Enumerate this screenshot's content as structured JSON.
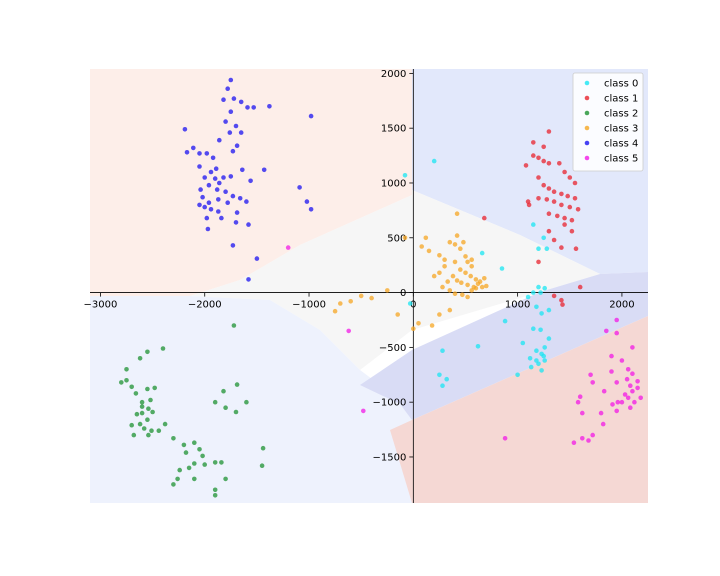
{
  "chart_data": {
    "type": "scatter",
    "title": "",
    "xlabel": "",
    "ylabel": "",
    "xlim": [
      -3100,
      2250
    ],
    "ylim": [
      -1920,
      2040
    ],
    "x_ticks": [
      -3000,
      -2000,
      -1000,
      0,
      1000,
      2000
    ],
    "y_ticks": [
      -1500,
      -1000,
      -500,
      0,
      500,
      1000,
      1500,
      2000
    ],
    "x_tick_labels": [
      "−3000",
      "−2000",
      "−1000",
      "0",
      "1000",
      "2000"
    ],
    "y_tick_labels": [
      "−1500",
      "−1000",
      "−500",
      "0",
      "500",
      "1000",
      "1500",
      "2000"
    ],
    "axes_through_origin": true,
    "grid": false,
    "legend_position": "top-right",
    "decision_regions": [
      {
        "class": "class 2 region (top-left)",
        "color": "#fdeee9"
      },
      {
        "class": "class 0 region (top-right)",
        "color": "#e2e8fb"
      },
      {
        "class": "class 3 region (center)",
        "color": "#f6f6f6"
      },
      {
        "class": "class 4 region (lower-left)",
        "color": "#eef2fd"
      },
      {
        "class": "class 1 region (band)",
        "color": "#d9dcf5"
      },
      {
        "class": "class 5 region (bottom-right)",
        "color": "#f5d8d4"
      }
    ],
    "series": [
      {
        "name": "class 0",
        "color": "#1ae5f2",
        "points": [
          [
            200,
            1200
          ],
          [
            -80,
            1070
          ],
          [
            1150,
            620
          ],
          [
            1250,
            500
          ],
          [
            1200,
            400
          ],
          [
            1280,
            400
          ],
          [
            660,
            360
          ],
          [
            850,
            220
          ],
          [
            1200,
            50
          ],
          [
            1150,
            0
          ],
          [
            1220,
            0
          ],
          [
            1260,
            40
          ],
          [
            1100,
            -40
          ],
          [
            1180,
            -130
          ],
          [
            1300,
            -160
          ],
          [
            1230,
            -190
          ],
          [
            880,
            -260
          ],
          [
            1150,
            -330
          ],
          [
            1220,
            -340
          ],
          [
            1300,
            -420
          ],
          [
            1050,
            -460
          ],
          [
            1260,
            -500
          ],
          [
            1180,
            -530
          ],
          [
            1230,
            -560
          ],
          [
            1120,
            -600
          ],
          [
            1180,
            -620
          ],
          [
            1260,
            -620
          ],
          [
            1200,
            -650
          ],
          [
            1130,
            -680
          ],
          [
            1230,
            -710
          ],
          [
            1000,
            -750
          ],
          [
            620,
            -490
          ],
          [
            280,
            -530
          ],
          [
            -30,
            -100
          ],
          [
            250,
            -750
          ],
          [
            280,
            -850
          ],
          [
            320,
            -790
          ],
          [
            1250,
            -580
          ]
        ]
      },
      {
        "name": "class 1",
        "color": "#e8232e",
        "points": [
          [
            1150,
            1370
          ],
          [
            1250,
            1330
          ],
          [
            1300,
            1470
          ],
          [
            1150,
            1250
          ],
          [
            1200,
            1230
          ],
          [
            1250,
            1200
          ],
          [
            1300,
            1180
          ],
          [
            1400,
            1180
          ],
          [
            1450,
            1100
          ],
          [
            1500,
            1050
          ],
          [
            1550,
            1000
          ],
          [
            1200,
            1050
          ],
          [
            1250,
            980
          ],
          [
            1300,
            950
          ],
          [
            1350,
            920
          ],
          [
            1420,
            900
          ],
          [
            1480,
            880
          ],
          [
            1550,
            860
          ],
          [
            1200,
            860
          ],
          [
            1280,
            850
          ],
          [
            1350,
            830
          ],
          [
            1420,
            800
          ],
          [
            1500,
            780
          ],
          [
            1580,
            760
          ],
          [
            1300,
            720
          ],
          [
            1380,
            700
          ],
          [
            1450,
            680
          ],
          [
            1520,
            660
          ],
          [
            1080,
            1160
          ],
          [
            1100,
            830
          ],
          [
            1110,
            800
          ],
          [
            1300,
            560
          ],
          [
            1450,
            620
          ],
          [
            1520,
            560
          ],
          [
            1560,
            400
          ],
          [
            1200,
            280
          ],
          [
            1420,
            410
          ],
          [
            1350,
            480
          ],
          [
            1600,
            50
          ],
          [
            1350,
            -30
          ],
          [
            1420,
            -70
          ],
          [
            1430,
            -110
          ],
          [
            680,
            680
          ]
        ]
      },
      {
        "name": "class 2",
        "color": "#1e9132",
        "points": [
          [
            -2750,
            -700
          ],
          [
            -2620,
            -600
          ],
          [
            -2550,
            -540
          ],
          [
            -2750,
            -800
          ],
          [
            -2800,
            -820
          ],
          [
            -2700,
            -860
          ],
          [
            -2550,
            -880
          ],
          [
            -2480,
            -870
          ],
          [
            -2660,
            -920
          ],
          [
            -2520,
            -980
          ],
          [
            -2600,
            -1040
          ],
          [
            -2540,
            -1060
          ],
          [
            -2500,
            -1090
          ],
          [
            -2650,
            -1110
          ],
          [
            -2550,
            -1160
          ],
          [
            -2620,
            -1200
          ],
          [
            -2700,
            -1210
          ],
          [
            -2580,
            -1240
          ],
          [
            -2510,
            -1260
          ],
          [
            -2440,
            -1260
          ],
          [
            -2540,
            -1300
          ],
          [
            -2680,
            -1300
          ],
          [
            -2380,
            -1200
          ],
          [
            -2300,
            -1330
          ],
          [
            -2200,
            -1390
          ],
          [
            -2100,
            -1370
          ],
          [
            -2050,
            -1430
          ],
          [
            -2180,
            -1460
          ],
          [
            -2020,
            -1490
          ],
          [
            -2000,
            -1570
          ],
          [
            -2100,
            -1560
          ],
          [
            -2150,
            -1600
          ],
          [
            -2240,
            -1620
          ],
          [
            -2260,
            -1700
          ],
          [
            -2300,
            -1750
          ],
          [
            -2100,
            -1700
          ],
          [
            -1900,
            -1550
          ],
          [
            -1840,
            -1550
          ],
          [
            -1900,
            -1800
          ],
          [
            -1800,
            -1700
          ],
          [
            -1900,
            -1850
          ],
          [
            -1800,
            -1050
          ],
          [
            -1900,
            -1000
          ],
          [
            -1820,
            -900
          ],
          [
            -1690,
            -840
          ],
          [
            -1600,
            -1000
          ],
          [
            -1700,
            -1090
          ],
          [
            -1440,
            -1420
          ],
          [
            -1450,
            -1580
          ],
          [
            -1720,
            -300
          ],
          [
            -2400,
            -510
          ],
          [
            -2600,
            -1000
          ],
          [
            -2600,
            -1100
          ]
        ]
      },
      {
        "name": "class 3",
        "color": "#f5a623",
        "points": [
          [
            -80,
            500
          ],
          [
            120,
            500
          ],
          [
            80,
            420
          ],
          [
            150,
            380
          ],
          [
            250,
            340
          ],
          [
            300,
            300
          ],
          [
            350,
            460
          ],
          [
            400,
            440
          ],
          [
            450,
            400
          ],
          [
            420,
            520
          ],
          [
            480,
            460
          ],
          [
            500,
            330
          ],
          [
            520,
            280
          ],
          [
            560,
            240
          ],
          [
            400,
            280
          ],
          [
            300,
            240
          ],
          [
            250,
            180
          ],
          [
            200,
            150
          ],
          [
            450,
            210
          ],
          [
            500,
            180
          ],
          [
            550,
            150
          ],
          [
            600,
            120
          ],
          [
            620,
            80
          ],
          [
            660,
            50
          ],
          [
            580,
            50
          ],
          [
            520,
            70
          ],
          [
            460,
            90
          ],
          [
            420,
            110
          ],
          [
            380,
            150
          ],
          [
            330,
            100
          ],
          [
            280,
            50
          ],
          [
            350,
            20
          ],
          [
            400,
            -10
          ],
          [
            470,
            -20
          ],
          [
            520,
            -40
          ],
          [
            560,
            20
          ],
          [
            600,
            40
          ],
          [
            640,
            100
          ],
          [
            680,
            130
          ],
          [
            700,
            60
          ],
          [
            350,
            -160
          ],
          [
            250,
            -200
          ],
          [
            180,
            -300
          ],
          [
            50,
            -280
          ],
          [
            -150,
            -200
          ],
          [
            -250,
            20
          ],
          [
            -400,
            -50
          ],
          [
            -600,
            -80
          ],
          [
            -700,
            -100
          ],
          [
            -750,
            -170
          ],
          [
            -500,
            -30
          ],
          [
            560,
            300
          ],
          [
            420,
            720
          ],
          [
            0,
            -330
          ]
        ]
      },
      {
        "name": "class 4",
        "color": "#1a12f0",
        "points": [
          [
            -1750,
            1940
          ],
          [
            -1780,
            1860
          ],
          [
            -1820,
            1760
          ],
          [
            -1720,
            1770
          ],
          [
            -1650,
            1740
          ],
          [
            -1750,
            1650
          ],
          [
            -1590,
            1690
          ],
          [
            -1530,
            1690
          ],
          [
            -1380,
            1700
          ],
          [
            -1800,
            1560
          ],
          [
            -1700,
            1520
          ],
          [
            -1760,
            1460
          ],
          [
            -1650,
            1460
          ],
          [
            -2190,
            1490
          ],
          [
            -2110,
            1320
          ],
          [
            -2170,
            1280
          ],
          [
            -2050,
            1270
          ],
          [
            -1980,
            1270
          ],
          [
            -1920,
            1230
          ],
          [
            -1860,
            1390
          ],
          [
            -1690,
            1340
          ],
          [
            -1730,
            1290
          ],
          [
            -1890,
            1130
          ],
          [
            -1940,
            1100
          ],
          [
            -2050,
            1150
          ],
          [
            -2000,
            1050
          ],
          [
            -1900,
            1040
          ],
          [
            -1820,
            1050
          ],
          [
            -1750,
            1060
          ],
          [
            -1640,
            1120
          ],
          [
            -1560,
            1020
          ],
          [
            -1860,
            1000
          ],
          [
            -1960,
            980
          ],
          [
            -2040,
            940
          ],
          [
            -1880,
            940
          ],
          [
            -1800,
            920
          ],
          [
            -1730,
            880
          ],
          [
            -1660,
            860
          ],
          [
            -1600,
            830
          ],
          [
            -2020,
            870
          ],
          [
            -1960,
            820
          ],
          [
            -1870,
            850
          ],
          [
            -1780,
            820
          ],
          [
            -2000,
            780
          ],
          [
            -1940,
            760
          ],
          [
            -1870,
            740
          ],
          [
            -1690,
            730
          ],
          [
            -2050,
            800
          ],
          [
            -1840,
            680
          ],
          [
            -1980,
            680
          ],
          [
            -1700,
            640
          ],
          [
            -1580,
            620
          ],
          [
            -1430,
            1120
          ],
          [
            -1090,
            960
          ],
          [
            -1020,
            830
          ],
          [
            -980,
            760
          ],
          [
            -1580,
            120
          ],
          [
            -1500,
            310
          ],
          [
            -980,
            1610
          ],
          [
            -1730,
            430
          ],
          [
            -1970,
            580
          ]
        ]
      },
      {
        "name": "class 5",
        "color": "#f21ae6",
        "points": [
          [
            2100,
            -500
          ],
          [
            1900,
            -580
          ],
          [
            2000,
            -620
          ],
          [
            2060,
            -700
          ],
          [
            1900,
            -720
          ],
          [
            2100,
            -740
          ],
          [
            2050,
            -790
          ],
          [
            2150,
            -810
          ],
          [
            1950,
            -820
          ],
          [
            2080,
            -850
          ],
          [
            2150,
            -870
          ],
          [
            2100,
            -900
          ],
          [
            2030,
            -930
          ],
          [
            2180,
            -960
          ],
          [
            2120,
            -1000
          ],
          [
            1960,
            -1000
          ],
          [
            1910,
            -1020
          ],
          [
            2080,
            -1050
          ],
          [
            1950,
            -1080
          ],
          [
            1700,
            -750
          ],
          [
            1720,
            -820
          ],
          [
            1600,
            -950
          ],
          [
            1580,
            -1000
          ],
          [
            1620,
            -1100
          ],
          [
            1800,
            -1100
          ],
          [
            1820,
            -1200
          ],
          [
            1720,
            -1300
          ],
          [
            1680,
            -1350
          ],
          [
            1540,
            -1370
          ],
          [
            2000,
            -1000
          ],
          [
            2060,
            -960
          ],
          [
            1830,
            -900
          ],
          [
            880,
            -1330
          ],
          [
            1950,
            -250
          ],
          [
            1850,
            -350
          ],
          [
            1950,
            -370
          ],
          [
            -1200,
            410
          ],
          [
            -620,
            -350
          ],
          [
            -480,
            -1080
          ],
          [
            1620,
            -1330
          ]
        ]
      }
    ]
  }
}
